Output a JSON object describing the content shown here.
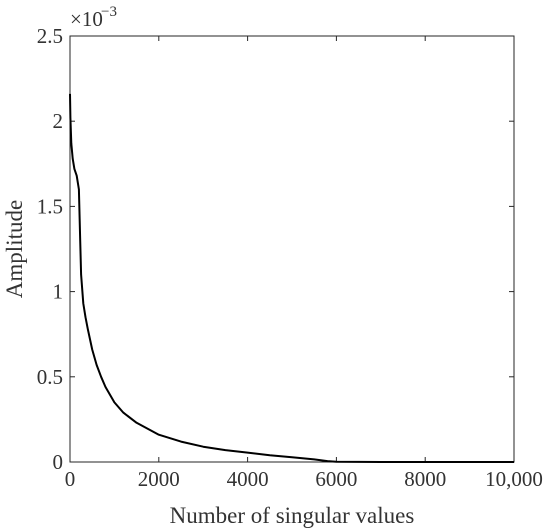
{
  "chart_data": {
    "type": "line",
    "title": "",
    "xlabel": "Number of singular values",
    "ylabel": "Amplitude",
    "y_exponent_label": "×10",
    "y_exponent_power": "−3",
    "xlim": [
      0,
      10000
    ],
    "ylim": [
      0,
      2.5
    ],
    "grid": false,
    "legend": "none",
    "x_ticks": [
      0,
      2000,
      4000,
      6000,
      8000,
      10000
    ],
    "x_tick_labels": [
      "0",
      "2000",
      "4000",
      "6000",
      "8000",
      "10,000"
    ],
    "y_ticks": [
      0,
      0.5,
      1,
      1.5,
      2,
      2.5
    ],
    "y_tick_labels": [
      "0",
      "0.5",
      "1",
      "1.5",
      "2",
      "2.5"
    ],
    "line_color": "#000000",
    "series": [
      {
        "x": [
          0,
          10,
          30,
          60,
          100,
          150,
          200,
          230,
          250,
          300,
          350,
          400,
          500,
          600,
          700,
          800,
          1000,
          1200,
          1500,
          2000,
          2500,
          3000,
          3500,
          4000,
          4500,
          5000,
          5500,
          5800,
          6000,
          7000,
          8000,
          9000,
          10000
        ],
        "values": [
          2.16,
          2.02,
          1.87,
          1.78,
          1.72,
          1.68,
          1.6,
          1.3,
          1.1,
          0.93,
          0.85,
          0.78,
          0.66,
          0.57,
          0.5,
          0.44,
          0.35,
          0.29,
          0.23,
          0.16,
          0.12,
          0.09,
          0.07,
          0.055,
          0.04,
          0.028,
          0.015,
          0.005,
          0.001,
          0,
          0,
          0,
          0
        ]
      }
    ]
  }
}
